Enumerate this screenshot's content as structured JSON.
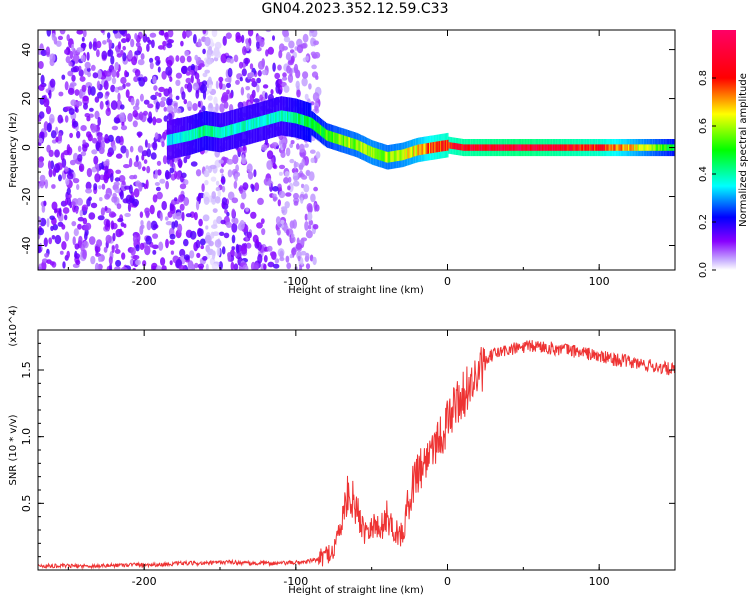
{
  "title": "GN04.2023.352.12.59.C33",
  "chart_data": [
    {
      "type": "heatmap",
      "xlabel": "Height of straight line (km)",
      "ylabel": "Frequency (Hz)",
      "xlim": [
        -270,
        150
      ],
      "ylim": [
        -50,
        48
      ],
      "x_ticks": [
        -200,
        -100,
        0,
        100
      ],
      "y_ticks": [
        40,
        20,
        0,
        -20,
        -40
      ],
      "colorbar": {
        "label": "Normalized spectral amplitude",
        "range": [
          0,
          1
        ],
        "ticks": [
          0.0,
          0.2,
          0.4,
          0.6,
          0.8
        ],
        "colormap": [
          "#ffffff",
          "#c9b0ff",
          "#8800ff",
          "#0000ff",
          "#00ffff",
          "#00ff00",
          "#ffff00",
          "#ff0000",
          "#ff0066"
        ]
      },
      "ridge": {
        "x": [
          -185,
          -170,
          -160,
          -150,
          -110,
          -100,
          -90,
          -80,
          -70,
          -60,
          -50,
          -40,
          -30,
          -20,
          -10,
          0,
          10,
          50,
          100,
          150
        ],
        "frequency": [
          3,
          5,
          7,
          6,
          13,
          12,
          10,
          5,
          3,
          1,
          -2,
          -4,
          -3,
          -1,
          0,
          1,
          0,
          0,
          0,
          0
        ],
        "amplitude": [
          0.35,
          0.4,
          0.45,
          0.4,
          0.4,
          0.45,
          0.5,
          0.55,
          0.6,
          0.62,
          0.65,
          0.62,
          0.65,
          0.7,
          0.8,
          0.85,
          0.9,
          0.95,
          0.85,
          0.5
        ]
      },
      "noise_region_x": [
        -270,
        -85
      ],
      "gap_region_x": [
        -160,
        -150
      ]
    },
    {
      "type": "line",
      "xlabel": "Height of straight line (km)",
      "ylabel": "SNR (10 * v/v)",
      "y_multiplier": "(x10^4)",
      "xlim": [
        -270,
        150
      ],
      "ylim": [
        0,
        1.8
      ],
      "x_ticks": [
        -200,
        -100,
        0,
        100
      ],
      "y_ticks": [
        0.5,
        1.0,
        1.5
      ],
      "color": "#ee3333",
      "series": [
        {
          "x": [
            -270,
            -250,
            -230,
            -210,
            -190,
            -175,
            -160,
            -145,
            -130,
            -110,
            -95,
            -85,
            -75,
            -70,
            -65,
            -60,
            -55,
            -50,
            -45,
            -40,
            -35,
            -30,
            -25,
            -20,
            -15,
            -10,
            -5,
            0,
            5,
            10,
            15,
            20,
            25,
            30,
            40,
            50,
            60,
            70,
            80,
            90,
            100,
            110,
            120,
            130,
            140,
            150
          ],
          "values": [
            0.03,
            0.03,
            0.03,
            0.04,
            0.04,
            0.05,
            0.05,
            0.06,
            0.05,
            0.05,
            0.06,
            0.08,
            0.15,
            0.35,
            0.6,
            0.45,
            0.3,
            0.35,
            0.3,
            0.4,
            0.3,
            0.25,
            0.55,
            0.75,
            0.8,
            0.95,
            1.0,
            1.1,
            1.25,
            1.3,
            1.4,
            1.45,
            1.55,
            1.62,
            1.65,
            1.67,
            1.68,
            1.66,
            1.65,
            1.63,
            1.6,
            1.58,
            1.56,
            1.54,
            1.52,
            1.5
          ]
        }
      ]
    }
  ]
}
